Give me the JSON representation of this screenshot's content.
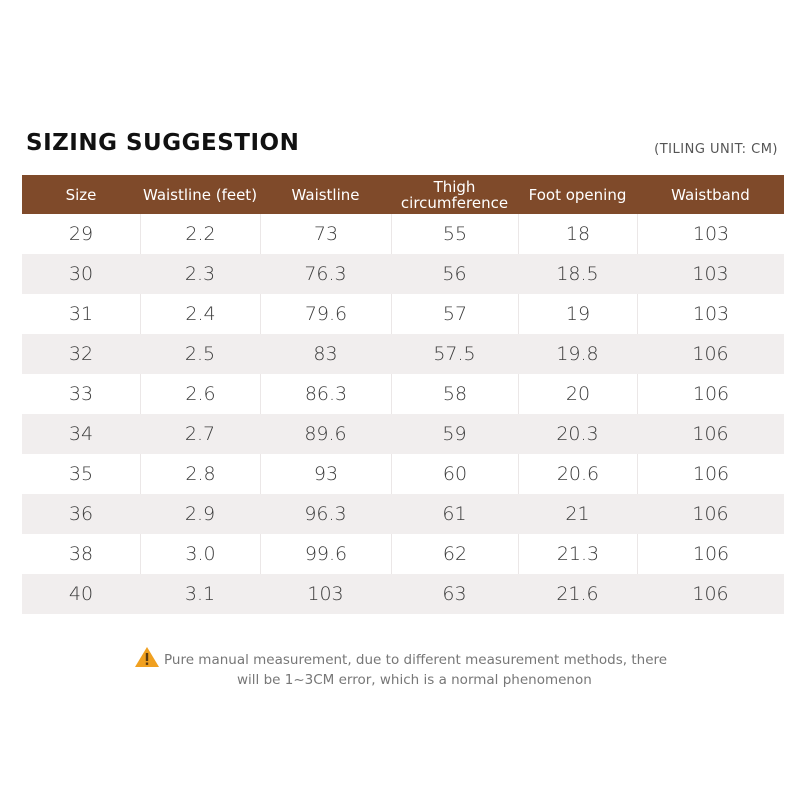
{
  "title": "SIZING SUGGESTION",
  "unit_note": "(TILING UNIT: CM)",
  "table": {
    "headers": [
      "Size",
      "Waistline (feet)",
      "Waistline",
      "Thigh circumference",
      "Foot opening",
      "Waistband"
    ],
    "rows": [
      [
        "29",
        "2.2",
        "73",
        "55",
        "18",
        "103"
      ],
      [
        "30",
        "2.3",
        "76.3",
        "56",
        "18.5",
        "103"
      ],
      [
        "31",
        "2.4",
        "79.6",
        "57",
        "19",
        "103"
      ],
      [
        "32",
        "2.5",
        "83",
        "57.5",
        "19.8",
        "106"
      ],
      [
        "33",
        "2.6",
        "86.3",
        "58",
        "20",
        "106"
      ],
      [
        "34",
        "2.7",
        "89.6",
        "59",
        "20.3",
        "106"
      ],
      [
        "35",
        "2.8",
        "93",
        "60",
        "20.6",
        "106"
      ],
      [
        "36",
        "2.9",
        "96.3",
        "61",
        "21",
        "106"
      ],
      [
        "38",
        "3.0",
        "99.6",
        "62",
        "21.3",
        "106"
      ],
      [
        "40",
        "3.1",
        "103",
        "63",
        "21.6",
        "106"
      ]
    ]
  },
  "footnote": {
    "icon": "warning-icon",
    "line1": "Pure manual measurement, due to different measurement methods, there",
    "line2": "will be 1~3CM error, which is a normal phenomenon"
  },
  "colors": {
    "header_bg": "#7f4a2a",
    "stripe_bg": "#f1eeee",
    "warning": "#f0a020"
  }
}
